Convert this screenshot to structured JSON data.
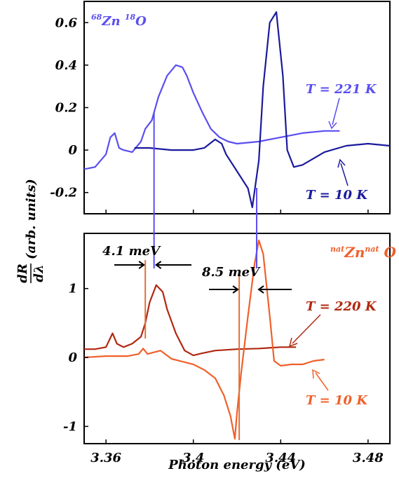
{
  "chart_data": [
    {
      "type": "line",
      "panel": "top",
      "sample_label": {
        "sup": "68",
        "base1": "Zn ",
        "sup2": "18",
        "base2": "O"
      },
      "xlim": [
        3.35,
        3.49
      ],
      "ylim": [
        -0.3,
        0.7
      ],
      "yticks": [
        "0.6",
        "0.4",
        "0.2",
        "0",
        "-0.2"
      ],
      "ytick_values": [
        0.6,
        0.4,
        0.2,
        0,
        -0.2
      ],
      "series": [
        {
          "name": "T = 221 K",
          "color": "#5a4ef0",
          "x": [
            3.35,
            3.355,
            3.36,
            3.362,
            3.364,
            3.366,
            3.368,
            3.372,
            3.376,
            3.378,
            3.381,
            3.384,
            3.388,
            3.392,
            3.395,
            3.397,
            3.4,
            3.404,
            3.408,
            3.412,
            3.416,
            3.42,
            3.43,
            3.44,
            3.45,
            3.46,
            3.467
          ],
          "y": [
            -0.09,
            -0.08,
            -0.02,
            0.06,
            0.08,
            0.01,
            0.0,
            -0.01,
            0.04,
            0.1,
            0.14,
            0.25,
            0.35,
            0.4,
            0.39,
            0.35,
            0.27,
            0.18,
            0.1,
            0.06,
            0.04,
            0.03,
            0.04,
            0.06,
            0.08,
            0.09,
            0.09
          ]
        },
        {
          "name": "T = 10 K",
          "color": "#1a1a9c",
          "x": [
            3.373,
            3.38,
            3.39,
            3.4,
            3.405,
            3.41,
            3.413,
            3.415,
            3.42,
            3.425,
            3.427,
            3.43,
            3.432,
            3.435,
            3.438,
            3.441,
            3.443,
            3.446,
            3.45,
            3.455,
            3.46,
            3.47,
            3.48,
            3.49
          ],
          "y": [
            0.01,
            0.01,
            0.0,
            0.0,
            0.01,
            0.05,
            0.03,
            -0.02,
            -0.1,
            -0.18,
            -0.27,
            -0.05,
            0.3,
            0.6,
            0.65,
            0.35,
            0.0,
            -0.08,
            -0.07,
            -0.04,
            -0.01,
            0.02,
            0.03,
            0.02
          ]
        }
      ],
      "annotations": [
        "T = 221 K",
        "T = 10 K"
      ]
    },
    {
      "type": "line",
      "panel": "bottom",
      "sample_label": {
        "sup": "nat",
        "base1": "Zn",
        "sup2": "nat",
        "base2": " O"
      },
      "xlabel": "Photon energy (eV)",
      "xlim": [
        3.35,
        3.49
      ],
      "xticks": [
        "3.36",
        "3.4",
        "3.44",
        "3.48"
      ],
      "xtick_values": [
        3.36,
        3.4,
        3.44,
        3.48
      ],
      "ylim": [
        -1.25,
        1.8
      ],
      "yticks": [
        "1",
        "0",
        "-1"
      ],
      "ytick_values": [
        1,
        0,
        -1
      ],
      "series": [
        {
          "name": "T = 220 K",
          "color": "#b02810",
          "x": [
            3.35,
            3.355,
            3.36,
            3.363,
            3.365,
            3.368,
            3.372,
            3.376,
            3.378,
            3.38,
            3.383,
            3.386,
            3.388,
            3.392,
            3.396,
            3.4,
            3.404,
            3.41,
            3.42,
            3.43,
            3.44,
            3.447
          ],
          "y": [
            0.12,
            0.12,
            0.15,
            0.35,
            0.2,
            0.15,
            0.2,
            0.3,
            0.5,
            0.8,
            1.05,
            0.95,
            0.7,
            0.35,
            0.1,
            0.03,
            0.06,
            0.1,
            0.12,
            0.13,
            0.15,
            0.15
          ]
        },
        {
          "name": "T = 10 K",
          "color": "#f0602a",
          "x": [
            3.35,
            3.36,
            3.37,
            3.375,
            3.377,
            3.379,
            3.385,
            3.39,
            3.4,
            3.405,
            3.41,
            3.414,
            3.417,
            3.419,
            3.42,
            3.422,
            3.425,
            3.428,
            3.43,
            3.432,
            3.435,
            3.437,
            3.44,
            3.445,
            3.45,
            3.455,
            3.46
          ],
          "y": [
            0.0,
            0.02,
            0.02,
            0.05,
            0.13,
            0.05,
            0.1,
            -0.02,
            -0.1,
            -0.18,
            -0.3,
            -0.55,
            -0.85,
            -1.18,
            -0.8,
            -0.2,
            0.6,
            1.35,
            1.7,
            1.5,
            0.6,
            -0.05,
            -0.12,
            -0.1,
            -0.1,
            -0.05,
            -0.03
          ]
        }
      ],
      "annotations": [
        "T = 220 K",
        "T = 10 K",
        "4.1 meV",
        "8.5 meV"
      ]
    }
  ],
  "ylabel": {
    "num": "dR",
    "den": "dλ",
    "rest": "(arb. units)"
  },
  "colors": {
    "t221": "#5a4ef0",
    "t10_top": "#1a1a9c",
    "t220": "#b02810",
    "t10_bottom": "#f0602a",
    "marker_blue": "#5a4ef0",
    "marker_orange": "#e07038"
  },
  "markers": {
    "blue_x": [
      3.382,
      3.429
    ],
    "orange_x": [
      3.378,
      3.421
    ],
    "gap_left": "4.1 meV",
    "gap_right": "8.5 meV"
  }
}
